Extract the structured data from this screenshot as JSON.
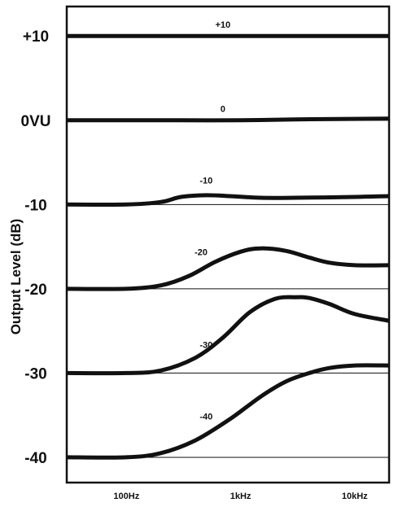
{
  "chart_data": {
    "type": "line",
    "xlabel": "",
    "ylabel": "Output Level (dB)",
    "x_scale": "log",
    "xlim": [
      30,
      20000
    ],
    "ylim": [
      -43,
      13.5
    ],
    "x_ticks": [
      {
        "value": 100,
        "label": "100Hz"
      },
      {
        "value": 1000,
        "label": "1kHz"
      },
      {
        "value": 10000,
        "label": "10kHz"
      }
    ],
    "y_ticks": [
      {
        "value": 10,
        "label": "+10"
      },
      {
        "value": 0,
        "label": "0VU"
      },
      {
        "value": -10,
        "label": "-10"
      },
      {
        "value": -20,
        "label": "-20"
      },
      {
        "value": -30,
        "label": "-30"
      },
      {
        "value": -40,
        "label": "-40"
      }
    ],
    "reference_lines": [
      10,
      0,
      -10,
      -20,
      -30,
      -40
    ],
    "grid": false,
    "series": [
      {
        "name": "+10",
        "label": "+10",
        "label_at": [
          700,
          11.0
        ],
        "x": [
          30,
          100,
          300,
          1000,
          3000,
          20000
        ],
        "y": [
          10,
          10,
          10,
          10,
          10,
          10
        ]
      },
      {
        "name": "0",
        "label": "0",
        "label_at": [
          700,
          1.0
        ],
        "x": [
          30,
          100,
          300,
          1000,
          3000,
          20000
        ],
        "y": [
          0,
          0,
          0,
          0,
          0.1,
          0.2
        ]
      },
      {
        "name": "-10",
        "label": "-10",
        "label_at": [
          500,
          -7.5
        ],
        "x": [
          30,
          100,
          200,
          300,
          500,
          800,
          1500,
          3000,
          10000,
          20000
        ],
        "y": [
          -10,
          -10,
          -9.7,
          -9.1,
          -8.9,
          -9.0,
          -9.2,
          -9.2,
          -9.1,
          -9.0
        ]
      },
      {
        "name": "-20",
        "label": "-20",
        "label_at": [
          450,
          -16.0
        ],
        "x": [
          30,
          100,
          200,
          350,
          600,
          1000,
          1500,
          2500,
          4000,
          6000,
          10000,
          20000
        ],
        "y": [
          -20,
          -20,
          -19.6,
          -18.5,
          -16.8,
          -15.6,
          -15.2,
          -15.5,
          -16.3,
          -16.9,
          -17.2,
          -17.2
        ]
      },
      {
        "name": "-30",
        "label": "-30",
        "label_at": [
          500,
          -27.0
        ],
        "x": [
          30,
          100,
          200,
          400,
          700,
          1200,
          2000,
          3000,
          4000,
          6000,
          10000,
          20000
        ],
        "y": [
          -30,
          -30,
          -29.7,
          -28.2,
          -25.8,
          -22.8,
          -21.2,
          -21.0,
          -21.1,
          -21.8,
          -23.0,
          -23.8
        ]
      },
      {
        "name": "-40",
        "label": "-40",
        "label_at": [
          500,
          -35.5
        ],
        "x": [
          30,
          100,
          200,
          400,
          800,
          1500,
          2500,
          4000,
          6000,
          10000,
          20000
        ],
        "y": [
          -40,
          -40,
          -39.5,
          -38.0,
          -35.5,
          -32.8,
          -31.0,
          -30.0,
          -29.4,
          -29.1,
          -29.1
        ]
      }
    ]
  }
}
